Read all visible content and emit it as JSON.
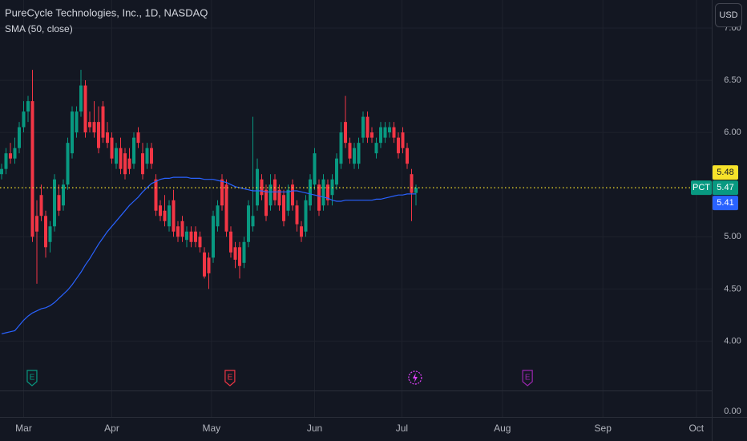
{
  "chart_data": {
    "type": "candlestick",
    "title": "PureCycle Technologies, Inc., 1D, NASDAQ",
    "indicator": "SMA (50, close)",
    "currency": "USD",
    "symbol": "PCT",
    "up_color": "#089981",
    "down_color": "#f23645",
    "sma_color": "#2962ff",
    "last_line_color": "#f7e22a",
    "categories": [
      null,
      null,
      null,
      null,
      null,
      null,
      null,
      null,
      null,
      null,
      null,
      null,
      null,
      null,
      null,
      null,
      null,
      null,
      null,
      null,
      null,
      null,
      null,
      null,
      null,
      null,
      null,
      null,
      null,
      null,
      null,
      null,
      null,
      null,
      null,
      null,
      null,
      null,
      null,
      null,
      null,
      null,
      null,
      null,
      null,
      null,
      null,
      null,
      null,
      null,
      null,
      null,
      null,
      null,
      null,
      null,
      null,
      null,
      null,
      null,
      null,
      null,
      null,
      null,
      null,
      null,
      null,
      null,
      null,
      null,
      null,
      null,
      null,
      null,
      null,
      null,
      null,
      null,
      null,
      null,
      null,
      null,
      null,
      null,
      null,
      null,
      null,
      null,
      null,
      null,
      null,
      null,
      null,
      null,
      null
    ],
    "open": [
      5.6,
      5.65,
      5.8,
      5.75,
      5.85,
      6.05,
      6.2,
      6.3,
      5.2,
      5.4,
      5.2,
      4.95,
      5.1,
      5.4,
      5.3,
      5.5,
      5.8,
      6.0,
      6.2,
      6.45,
      6.1,
      6.1,
      6.1,
      6.25,
      6.0,
      5.95,
      5.7,
      5.85,
      5.8,
      5.75,
      5.7,
      6.0,
      5.8,
      5.7,
      5.85,
      5.55,
      5.3,
      5.25,
      5.1,
      5.35,
      5.1,
      5.15,
      4.97,
      5.05,
      5.05,
      5.0,
      4.85,
      4.8,
      4.8,
      5.1,
      5.55,
      5.5,
      5.05,
      4.9,
      4.9,
      4.75,
      4.95,
      5.1,
      5.3,
      5.55,
      5.45,
      5.3,
      5.55,
      5.45,
      5.4,
      5.25,
      5.5,
      5.3,
      5.1,
      5.05,
      5.3,
      5.5,
      5.5,
      5.3,
      5.5,
      5.4,
      5.5,
      5.7,
      6.1,
      5.9,
      5.7,
      5.7,
      5.95,
      6.15,
      6.0,
      5.8,
      5.9,
      5.95,
      6.0,
      6.05,
      5.95,
      6.0,
      5.85,
      5.6,
      5.42
    ],
    "high": [
      5.7,
      5.85,
      5.9,
      5.95,
      6.1,
      6.3,
      6.35,
      6.6,
      5.35,
      5.5,
      5.25,
      5.15,
      5.6,
      5.5,
      5.55,
      5.95,
      6.25,
      6.25,
      6.6,
      6.5,
      6.2,
      6.3,
      6.25,
      6.3,
      6.1,
      6.0,
      5.9,
      5.95,
      5.85,
      5.85,
      6.0,
      6.05,
      5.9,
      5.9,
      5.9,
      5.6,
      5.35,
      5.4,
      5.35,
      5.45,
      5.15,
      5.2,
      5.1,
      5.1,
      5.1,
      5.05,
      4.9,
      4.85,
      5.25,
      5.35,
      5.6,
      5.55,
      5.1,
      4.95,
      4.95,
      5.0,
      5.35,
      6.15,
      5.75,
      5.6,
      5.5,
      5.6,
      5.6,
      5.5,
      5.45,
      5.5,
      5.55,
      5.35,
      5.15,
      5.4,
      5.6,
      5.85,
      5.55,
      5.6,
      5.55,
      5.6,
      5.8,
      6.1,
      6.35,
      5.95,
      5.9,
      5.95,
      6.2,
      6.2,
      6.05,
      5.95,
      6.1,
      6.1,
      6.1,
      6.1,
      6.0,
      6.05,
      5.9,
      5.65,
      5.5
    ],
    "low": [
      5.55,
      5.6,
      5.7,
      5.7,
      5.8,
      6.0,
      6.1,
      4.95,
      4.55,
      5.15,
      4.8,
      4.85,
      5.05,
      5.2,
      5.25,
      5.45,
      5.75,
      5.95,
      6.15,
      5.95,
      6.0,
      5.95,
      5.8,
      5.9,
      5.85,
      5.7,
      5.65,
      5.6,
      5.55,
      5.6,
      5.65,
      5.85,
      5.55,
      5.65,
      5.65,
      5.2,
      5.15,
      5.1,
      5.05,
      5.0,
      4.95,
      4.95,
      4.9,
      4.9,
      4.9,
      4.85,
      4.6,
      4.5,
      4.75,
      5.05,
      5.25,
      5.0,
      4.8,
      4.7,
      4.6,
      4.7,
      4.9,
      5.05,
      5.25,
      5.35,
      5.15,
      5.25,
      5.3,
      5.25,
      5.1,
      5.2,
      5.25,
      5.05,
      4.95,
      5.0,
      5.25,
      5.45,
      5.2,
      5.25,
      5.3,
      5.3,
      5.45,
      5.65,
      5.85,
      5.7,
      5.65,
      5.65,
      5.9,
      5.9,
      5.9,
      5.75,
      5.85,
      5.9,
      5.95,
      5.9,
      5.75,
      5.8,
      5.65,
      5.15,
      5.3
    ],
    "close": [
      5.65,
      5.8,
      5.75,
      5.85,
      6.05,
      6.2,
      6.3,
      5.0,
      5.05,
      5.2,
      4.9,
      5.1,
      5.55,
      5.25,
      5.5,
      5.9,
      6.2,
      6.2,
      6.45,
      6.0,
      6.05,
      6.0,
      5.85,
      5.95,
      5.9,
      5.75,
      5.85,
      5.65,
      5.6,
      5.65,
      5.95,
      5.9,
      5.6,
      5.85,
      5.7,
      5.25,
      5.2,
      5.15,
      5.3,
      5.05,
      5.0,
      5.0,
      5.05,
      4.95,
      4.95,
      4.9,
      4.62,
      4.65,
      5.2,
      5.3,
      5.3,
      5.05,
      4.85,
      4.78,
      4.72,
      4.95,
      5.3,
      5.2,
      5.65,
      5.4,
      5.2,
      5.5,
      5.35,
      5.3,
      5.15,
      5.45,
      5.3,
      5.12,
      5.0,
      5.35,
      5.55,
      5.8,
      5.25,
      5.55,
      5.35,
      5.55,
      5.75,
      6.0,
      5.9,
      5.75,
      5.85,
      5.9,
      6.15,
      5.95,
      5.95,
      5.9,
      6.05,
      6.05,
      6.05,
      5.95,
      5.8,
      5.85,
      5.7,
      5.42,
      5.47
    ],
    "sma": [
      4.07,
      4.08,
      4.09,
      4.1,
      4.15,
      4.2,
      4.24,
      4.27,
      4.29,
      4.31,
      4.32,
      4.34,
      4.37,
      4.41,
      4.45,
      4.49,
      4.54,
      4.6,
      4.66,
      4.73,
      4.79,
      4.86,
      4.93,
      4.99,
      5.05,
      5.1,
      5.15,
      5.2,
      5.25,
      5.3,
      5.34,
      5.38,
      5.43,
      5.47,
      5.51,
      5.53,
      5.55,
      5.56,
      5.56,
      5.57,
      5.57,
      5.57,
      5.57,
      5.56,
      5.56,
      5.56,
      5.55,
      5.55,
      5.55,
      5.54,
      5.53,
      5.52,
      5.5,
      5.48,
      5.47,
      5.46,
      5.45,
      5.44,
      5.44,
      5.44,
      5.43,
      5.43,
      5.43,
      5.43,
      5.43,
      5.43,
      5.44,
      5.44,
      5.43,
      5.42,
      5.41,
      5.4,
      5.39,
      5.38,
      5.37,
      5.35,
      5.34,
      5.34,
      5.35,
      5.35,
      5.35,
      5.35,
      5.35,
      5.35,
      5.35,
      5.36,
      5.36,
      5.37,
      5.38,
      5.39,
      5.4,
      5.4,
      5.41,
      5.41,
      5.41
    ],
    "price_labels": [
      {
        "value": 5.48,
        "color": "#f7e22a",
        "text_color": "#131722"
      },
      {
        "value": 5.47,
        "color": "#089981",
        "text_color": "#ffffff"
      },
      {
        "value": 5.41,
        "color": "#2962ff",
        "text_color": "#ffffff"
      }
    ],
    "events": [
      {
        "x": 6.9,
        "label": "E",
        "color": "#089981"
      },
      {
        "x": 51.8,
        "label": "E",
        "color": "#f23645"
      },
      {
        "x": 93.8,
        "color": "#e040fb"
      },
      {
        "x": 119.3,
        "label": "E",
        "color": "#9c27b0"
      }
    ],
    "xlim": [
      -0.364,
      161.09
    ],
    "xticks": [
      {
        "value": 5,
        "label": "Mar"
      },
      {
        "value": 25,
        "label": "Apr"
      },
      {
        "value": 47.6,
        "label": "May"
      },
      {
        "value": 71,
        "label": "Jun"
      },
      {
        "value": 90.8,
        "label": "Jul"
      },
      {
        "value": 113.6,
        "label": "Aug"
      },
      {
        "value": 136.4,
        "label": "Sep"
      },
      {
        "value": 157.6,
        "label": "Oct"
      }
    ],
    "ylim": [
      3.523,
      7.269
    ],
    "yticks": [
      {
        "value": 7,
        "label": "7.00"
      },
      {
        "value": 6.5,
        "label": "6.50"
      },
      {
        "value": 6,
        "label": "6.00"
      },
      {
        "value": 5,
        "label": "5.00"
      },
      {
        "value": 4.5,
        "label": "4.50"
      },
      {
        "value": 4,
        "label": "4.00"
      }
    ],
    "volume_yticks": [
      {
        "value": 0,
        "label": "0.00"
      }
    ],
    "grid": true
  }
}
